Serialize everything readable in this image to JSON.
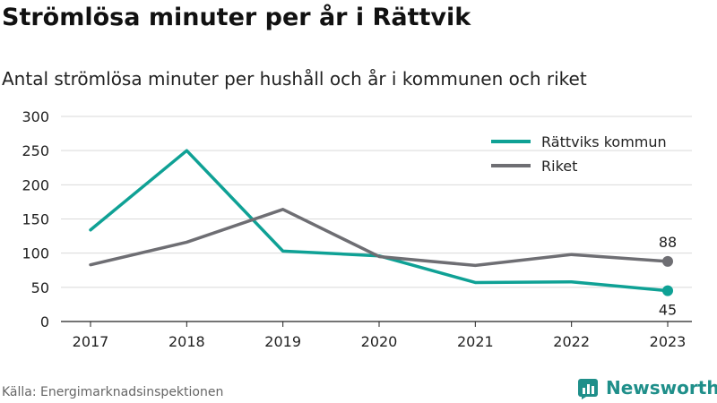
{
  "header": {
    "title": "Strömlösa minuter per år i Rättvik",
    "subtitle": "Antal strömlösa minuter per hushåll och år i kommunen och riket"
  },
  "footer": {
    "source": "Källa: Energimarknadsinspektionen",
    "brand": "Newsworthy"
  },
  "colors": {
    "rattvik": "#0fa195",
    "riket": "#6e6e73",
    "grid": "#d9d9d9",
    "brand": "#1f8f8a"
  },
  "chart_data": {
    "type": "line",
    "title": "Strömlösa minuter per år i Rättvik",
    "subtitle": "Antal strömlösa minuter per hushåll och år i kommunen och riket",
    "xlabel": "",
    "ylabel": "",
    "x": [
      "2017",
      "2018",
      "2019",
      "2020",
      "2021",
      "2022",
      "2023"
    ],
    "ylim": [
      0,
      300
    ],
    "yticks": [
      0,
      50,
      100,
      150,
      200,
      250,
      300
    ],
    "grid": true,
    "legend_position": "top-right",
    "series": [
      {
        "name": "Rättviks kommun",
        "values": [
          134,
          250,
          103,
          96,
          57,
          58,
          45
        ],
        "color": "#0fa195",
        "end_label": "45"
      },
      {
        "name": "Riket",
        "values": [
          83,
          116,
          164,
          95,
          82,
          98,
          88
        ],
        "color": "#6e6e73",
        "end_label": "88"
      }
    ]
  }
}
